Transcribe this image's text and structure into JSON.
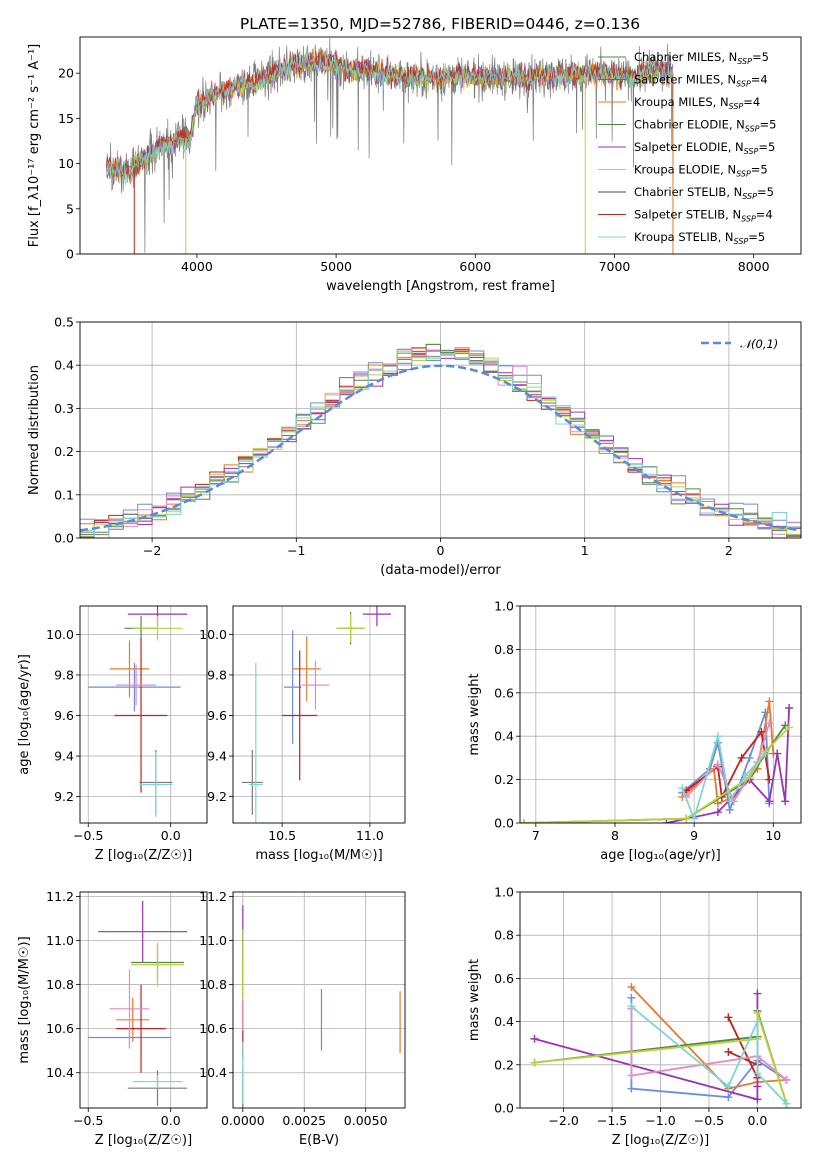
{
  "title": "PLATE=1350, MJD=52786, FIBERID=0446, z=0.136",
  "colors": {
    "c0": "#6b8fd9",
    "c1": "#e8782b",
    "c2": "#4e8a44",
    "c3": "#c0221d",
    "c4": "#9a35b0",
    "c5": "#8c5a4a",
    "c6": "#e38cc1",
    "c7": "#7a7a7a",
    "c8": "#bdd13a",
    "c9": "#7fd4d6"
  },
  "chart_data": [
    {
      "id": "spectrum",
      "type": "line",
      "xlabel": "wavelength [Angstrom, rest frame]",
      "ylabel": "Flux [f_λ10⁻¹⁷ erg cm⁻² s⁻¹ A⁻¹]",
      "xlim": [
        3160,
        8340
      ],
      "ylim": [
        0,
        24
      ],
      "xticks": [
        4000,
        5000,
        6000,
        7000,
        8000
      ],
      "yticks": [
        0,
        5,
        10,
        15,
        20
      ],
      "grid": false,
      "legend": "upper-right",
      "legend_entries": [
        {
          "label": "Chabrier MILES, N",
          "sub": "SSP",
          "val": "=5",
          "color": "#4e8a44"
        },
        {
          "label": "Salpeter MILES, N",
          "sub": "SSP",
          "val": "=4",
          "color": "#8c5a4a"
        },
        {
          "label": "Kroupa MILES, N",
          "sub": "SSP",
          "val": "=4",
          "color": "#e8782b"
        },
        {
          "label": "Chabrier ELODIE, N",
          "sub": "SSP",
          "val": "=5",
          "color": "#4e8a44"
        },
        {
          "label": "Salpeter ELODIE, N",
          "sub": "SSP",
          "val": "=5",
          "color": "#9a35b0"
        },
        {
          "label": "Kroupa ELODIE, N",
          "sub": "SSP",
          "val": "=5",
          "color": "#bdd13a"
        },
        {
          "label": "Chabrier STELIB, N",
          "sub": "SSP",
          "val": "=5",
          "color": "#444444"
        },
        {
          "label": "Salpeter STELIB, N",
          "sub": "SSP",
          "val": "=4",
          "color": "#c0221d"
        },
        {
          "label": "Kroupa STELIB, N",
          "sub": "SSP",
          "val": "=5",
          "color": "#7fd4d6"
        }
      ],
      "continuum": [
        [
          3350,
          9.6
        ],
        [
          3500,
          9.0
        ],
        [
          3600,
          10.2
        ],
        [
          3700,
          11.5
        ],
        [
          3850,
          12.5
        ],
        [
          3950,
          12.8
        ],
        [
          4000,
          16.5
        ],
        [
          4100,
          17.5
        ],
        [
          4300,
          18.5
        ],
        [
          4500,
          19.5
        ],
        [
          4700,
          21.0
        ],
        [
          4900,
          21.2
        ],
        [
          5100,
          20.5
        ],
        [
          5300,
          20.0
        ],
        [
          5500,
          19.6
        ],
        [
          5700,
          19.4
        ],
        [
          5900,
          19.7
        ],
        [
          6100,
          19.5
        ],
        [
          6300,
          19.4
        ],
        [
          6500,
          19.8
        ],
        [
          6700,
          19.9
        ],
        [
          6900,
          19.9
        ],
        [
          7100,
          19.6
        ],
        [
          7300,
          20.3
        ],
        [
          7420,
          20.0
        ]
      ]
    },
    {
      "id": "residuals",
      "type": "step",
      "xlabel": "(data-model)/error",
      "ylabel": "Normed distribution",
      "xlim": [
        -2.5,
        2.5
      ],
      "ylim": [
        0,
        0.5
      ],
      "xticks": [
        -2,
        -1,
        0,
        1,
        2
      ],
      "yticks": [
        0.0,
        0.1,
        0.2,
        0.3,
        0.4,
        0.5
      ],
      "grid": true,
      "legend": "upper-right",
      "legend_label": "𝒩(0,1)",
      "gauss_color": "#5b8ad6"
    },
    {
      "id": "age-vs-Z",
      "type": "errorbar",
      "xlabel": "Z [log₁₀(Z/Z☉)]",
      "ylabel": "age  [log₁₀(age/yr)]",
      "xlim": [
        -0.55,
        0.22
      ],
      "ylim": [
        9.07,
        10.14
      ],
      "xticks": [
        -0.5,
        0.0
      ],
      "yticks": [
        9.2,
        9.4,
        9.6,
        9.8,
        10.0
      ],
      "points": [
        {
          "x": -0.22,
          "y": 9.74,
          "xerr": 0.28,
          "yerr": 0.12,
          "c": "c0"
        },
        {
          "x": -0.25,
          "y": 9.83,
          "xerr": 0.12,
          "yerr": 0.14,
          "c": "c1"
        },
        {
          "x": -0.18,
          "y": 10.03,
          "xerr": 0.1,
          "yerr": 0.06,
          "c": "c2"
        },
        {
          "x": -0.18,
          "y": 9.6,
          "xerr": 0.16,
          "yerr": 0.38,
          "c": "c3"
        },
        {
          "x": -0.08,
          "y": 10.1,
          "xerr": 0.18,
          "yerr": 0.06,
          "c": "c4"
        },
        {
          "x": -0.21,
          "y": 9.75,
          "xerr": 0.12,
          "yerr": 0.1,
          "c": "c6"
        },
        {
          "x": -0.09,
          "y": 9.27,
          "xerr": 0.1,
          "yerr": 0.16,
          "c": "c7"
        },
        {
          "x": -0.08,
          "y": 10.03,
          "xerr": 0.15,
          "yerr": 0.06,
          "c": "c8"
        },
        {
          "x": -0.09,
          "y": 9.26,
          "xerr": 0.1,
          "yerr": 0.16,
          "c": "c9"
        }
      ]
    },
    {
      "id": "age-vs-mass",
      "type": "errorbar",
      "xlabel": "mass [log₁₀(M/M☉)]",
      "ylabel": "",
      "xlim": [
        10.22,
        11.2
      ],
      "ylim": [
        9.07,
        10.14
      ],
      "xticks": [
        10.5,
        11.0
      ],
      "yticks": [
        9.2,
        9.4,
        9.6,
        9.8,
        10.0
      ],
      "points": [
        {
          "x": 10.56,
          "y": 9.74,
          "xerr": 0.05,
          "yerr": 0.28,
          "c": "c0"
        },
        {
          "x": 10.64,
          "y": 9.83,
          "xerr": 0.08,
          "yerr": 0.16,
          "c": "c1"
        },
        {
          "x": 10.89,
          "y": 10.03,
          "xerr": 0.08,
          "yerr": 0.08,
          "c": "c2"
        },
        {
          "x": 10.6,
          "y": 9.6,
          "xerr": 0.1,
          "yerr": 0.32,
          "c": "c3"
        },
        {
          "x": 11.04,
          "y": 10.1,
          "xerr": 0.08,
          "yerr": 0.06,
          "c": "c4"
        },
        {
          "x": 10.69,
          "y": 9.75,
          "xerr": 0.08,
          "yerr": 0.12,
          "c": "c6"
        },
        {
          "x": 10.33,
          "y": 9.27,
          "xerr": 0.06,
          "yerr": 0.16,
          "c": "c7"
        },
        {
          "x": 10.89,
          "y": 10.03,
          "xerr": 0.08,
          "yerr": 0.07,
          "c": "c8"
        },
        {
          "x": 10.35,
          "y": 9.26,
          "xerr": 0.04,
          "yerr": 0.6,
          "c": "c9"
        }
      ]
    },
    {
      "id": "weight-vs-age",
      "type": "line",
      "xlabel": "age  [log₁₀(age/yr)]",
      "ylabel": "mass weight",
      "xlim": [
        6.8,
        10.35
      ],
      "ylim": [
        0,
        1.0
      ],
      "xticks": [
        7,
        8,
        9,
        10
      ],
      "yticks": [
        0.0,
        0.2,
        0.4,
        0.6,
        0.8,
        1.0
      ],
      "series": [
        {
          "c": "c0",
          "pts": [
            [
              8.85,
              0.14
            ],
            [
              9.2,
              0.25
            ],
            [
              9.3,
              0.37
            ],
            [
              9.45,
              0.06
            ],
            [
              9.7,
              0.3
            ],
            [
              9.9,
              0.51
            ],
            [
              9.95,
              0.09
            ]
          ]
        },
        {
          "c": "c1",
          "pts": [
            [
              8.85,
              0.12
            ],
            [
              9.25,
              0.25
            ],
            [
              9.3,
              0.09
            ],
            [
              9.5,
              0.12
            ],
            [
              9.8,
              0.25
            ],
            [
              9.95,
              0.56
            ],
            [
              10.0,
              0.32
            ]
          ]
        },
        {
          "c": "c2",
          "pts": [
            [
              6.85,
              0.0
            ],
            [
              8.9,
              0.02
            ],
            [
              9.7,
              0.2
            ],
            [
              9.9,
              0.32
            ],
            [
              10.15,
              0.45
            ]
          ]
        },
        {
          "c": "c3",
          "pts": [
            [
              8.9,
              0.15
            ],
            [
              9.3,
              0.26
            ],
            [
              9.35,
              0.12
            ],
            [
              9.6,
              0.3
            ],
            [
              9.85,
              0.42
            ],
            [
              9.95,
              0.2
            ]
          ]
        },
        {
          "c": "c4",
          "pts": [
            [
              8.65,
              0.0
            ],
            [
              9.3,
              0.05
            ],
            [
              9.7,
              0.2
            ],
            [
              9.95,
              0.1
            ],
            [
              10.05,
              0.32
            ],
            [
              10.15,
              0.1
            ],
            [
              10.2,
              0.53
            ]
          ]
        },
        {
          "c": "c6",
          "pts": [
            [
              8.9,
              0.12
            ],
            [
              9.3,
              0.27
            ],
            [
              9.5,
              0.1
            ],
            [
              9.8,
              0.28
            ],
            [
              9.95,
              0.46
            ]
          ]
        },
        {
          "c": "c8",
          "pts": [
            [
              6.85,
              0.0
            ],
            [
              8.9,
              0.02
            ],
            [
              9.7,
              0.21
            ],
            [
              9.9,
              0.33
            ],
            [
              10.2,
              0.44
            ]
          ]
        },
        {
          "c": "c9",
          "pts": [
            [
              8.85,
              0.16
            ],
            [
              9.0,
              0.02
            ],
            [
              9.3,
              0.4
            ],
            [
              9.45,
              0.1
            ],
            [
              9.65,
              0.22
            ],
            [
              9.9,
              0.32
            ]
          ]
        }
      ]
    },
    {
      "id": "mass-vs-Z",
      "type": "errorbar",
      "xlabel": "Z [log₁₀(Z/Z☉)]",
      "ylabel": "mass [log₁₀(M/M☉)]",
      "xlim": [
        -0.55,
        0.22
      ],
      "ylim": [
        10.24,
        11.22
      ],
      "xticks": [
        -0.5,
        0.0
      ],
      "yticks": [
        10.4,
        10.6,
        10.8,
        11.0,
        11.2
      ],
      "points": [
        {
          "x": -0.25,
          "y": 10.56,
          "xerr": 0.25,
          "yerr": 0.05,
          "c": "c0"
        },
        {
          "x": -0.23,
          "y": 10.64,
          "xerr": 0.1,
          "yerr": 0.1,
          "c": "c1"
        },
        {
          "x": -0.08,
          "y": 10.9,
          "xerr": 0.16,
          "yerr": 0.08,
          "c": "c2"
        },
        {
          "x": -0.18,
          "y": 10.6,
          "xerr": 0.15,
          "yerr": 0.2,
          "c": "c3"
        },
        {
          "x": -0.17,
          "y": 11.04,
          "xerr": 0.27,
          "yerr": 0.14,
          "c": "c4"
        },
        {
          "x": -0.25,
          "y": 10.69,
          "xerr": 0.12,
          "yerr": 0.18,
          "c": "c6"
        },
        {
          "x": -0.08,
          "y": 10.33,
          "xerr": 0.18,
          "yerr": 0.08,
          "c": "c7"
        },
        {
          "x": -0.08,
          "y": 10.89,
          "xerr": 0.16,
          "yerr": 0.1,
          "c": "c8"
        },
        {
          "x": -0.08,
          "y": 10.36,
          "xerr": 0.15,
          "yerr": 0.03,
          "c": "c9"
        }
      ]
    },
    {
      "id": "mass-vs-EBV",
      "type": "errorbar",
      "xlabel": "E(B-V)",
      "ylabel": "",
      "xlim": [
        -0.0004,
        0.0066
      ],
      "ylim": [
        10.24,
        11.22
      ],
      "xticks": [
        0.0,
        0.0025,
        0.005
      ],
      "xticklabels": [
        "0.0000",
        "0.0025",
        "0.0050"
      ],
      "yticks": [
        10.4,
        10.6,
        10.8,
        11.0,
        11.2
      ],
      "points": [
        {
          "x": 0.0032,
          "y": 10.64,
          "xerr": 0,
          "yerr": 0.14,
          "c": "c0"
        },
        {
          "x": 0.0064,
          "y": 10.63,
          "xerr": 0,
          "yerr": 0.14,
          "c": "c1"
        },
        {
          "x": 0.0,
          "y": 10.9,
          "xerr": 0,
          "yerr": 0.15,
          "c": "c2"
        },
        {
          "x": 0.0,
          "y": 10.6,
          "xerr": 0,
          "yerr": 0.14,
          "c": "c3"
        },
        {
          "x": 0.0,
          "y": 11.04,
          "xerr": 0,
          "yerr": 0.12,
          "c": "c4"
        },
        {
          "x": 0.0,
          "y": 10.69,
          "xerr": 0,
          "yerr": 0.1,
          "c": "c6"
        },
        {
          "x": 0.0,
          "y": 10.33,
          "xerr": 0,
          "yerr": 0.1,
          "c": "c7"
        },
        {
          "x": 0.0,
          "y": 10.89,
          "xerr": 0,
          "yerr": 0.16,
          "c": "c8"
        },
        {
          "x": 0.0,
          "y": 10.4,
          "xerr": 0,
          "yerr": 0.14,
          "c": "c9"
        }
      ]
    },
    {
      "id": "weight-vs-Z",
      "type": "line",
      "xlabel": "Z [log₁₀(Z/Z☉)]",
      "ylabel": "mass weight",
      "xlim": [
        -2.45,
        0.45
      ],
      "ylim": [
        0,
        1.0
      ],
      "xticks": [
        -2.0,
        -1.5,
        -1.0,
        -0.5,
        0.0
      ],
      "yticks": [
        0.0,
        0.2,
        0.4,
        0.6,
        0.8,
        1.0
      ],
      "series": [
        {
          "c": "c0",
          "pts": [
            [
              -1.3,
              0.51
            ],
            [
              -1.3,
              0.09
            ],
            [
              -0.3,
              0.05
            ],
            [
              0.0,
              0.22
            ],
            [
              0.3,
              0.13
            ]
          ]
        },
        {
          "c": "c1",
          "pts": [
            [
              -1.3,
              0.56
            ],
            [
              -0.3,
              0.09
            ],
            [
              0.0,
              0.12
            ],
            [
              0.3,
              0.13
            ]
          ]
        },
        {
          "c": "c2",
          "pts": [
            [
              -2.3,
              0.21
            ],
            [
              0.0,
              0.33
            ],
            [
              0.0,
              0.45
            ],
            [
              0.3,
              0.02
            ]
          ]
        },
        {
          "c": "c3",
          "pts": [
            [
              -0.3,
              0.42
            ],
            [
              0.0,
              0.14
            ],
            [
              0.0,
              0.2
            ],
            [
              -0.3,
              0.26
            ]
          ]
        },
        {
          "c": "c4",
          "pts": [
            [
              -2.3,
              0.32
            ],
            [
              0.0,
              0.04
            ],
            [
              0.0,
              0.53
            ],
            [
              0.0,
              0.1
            ]
          ]
        },
        {
          "c": "c6",
          "pts": [
            [
              -1.3,
              0.46
            ],
            [
              -1.3,
              0.15
            ],
            [
              0.0,
              0.24
            ],
            [
              0.3,
              0.13
            ]
          ]
        },
        {
          "c": "c8",
          "pts": [
            [
              -2.3,
              0.21
            ],
            [
              0.0,
              0.32
            ],
            [
              0.0,
              0.44
            ],
            [
              0.3,
              0.02
            ]
          ]
        },
        {
          "c": "c9",
          "pts": [
            [
              -1.3,
              0.47
            ],
            [
              -0.3,
              0.1
            ],
            [
              0.0,
              0.4
            ],
            [
              0.0,
              0.16
            ],
            [
              0.3,
              0.02
            ]
          ]
        }
      ]
    }
  ]
}
